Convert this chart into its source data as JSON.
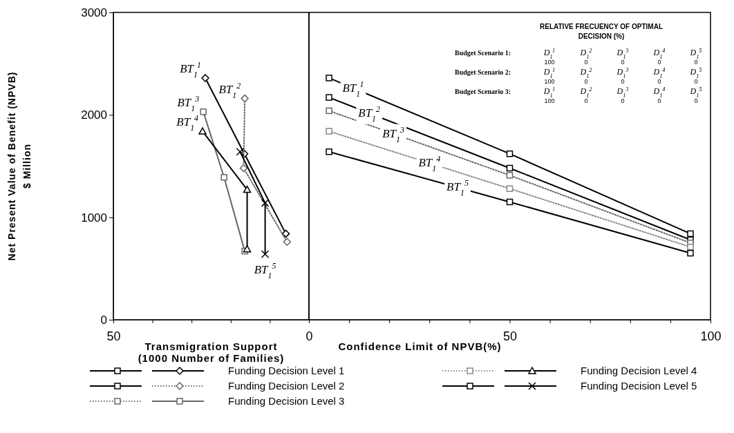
{
  "chart_data": [
    {
      "type": "line",
      "xlabel": "Transmigration Support\n(1000 Number of Families)",
      "ylabel": "Net Present Value of Benefit (NPVB)\n$ Million",
      "xlim": [
        50,
        0
      ],
      "xticks": [
        50,
        {
          "value": 40,
          "label": null
        },
        {
          "value": 30,
          "label": null
        },
        {
          "value": 20,
          "label": null
        },
        {
          "value": 10,
          "label": null
        },
        0
      ],
      "ylim": [
        0,
        3000
      ],
      "yticks": [
        0,
        1000,
        2000,
        3000
      ],
      "legend": "bottom",
      "series": [
        {
          "name": "Funding Decision Level 1",
          "color": "#000000",
          "marker": "diamond",
          "line_style": "solid",
          "x": [
            26.5,
            16.5,
            5.9
          ],
          "values": [
            2360,
            1620,
            840
          ]
        },
        {
          "name": "Funding Decision Level 2",
          "color": "#666666",
          "marker": "diamond",
          "line_style": "dotted",
          "x": [
            16.4,
            16.7,
            5.6
          ],
          "values": [
            2160,
            1480,
            760
          ]
        },
        {
          "name": "Funding Decision Level 3",
          "color": "#666666",
          "marker": "square",
          "line_style": "solid",
          "x": [
            27.0,
            21.7,
            16.4
          ],
          "values": [
            2030,
            1390,
            670
          ]
        },
        {
          "name": "Funding Decision Level 4",
          "color": "#000000",
          "marker": "triangle",
          "line_style": "solid",
          "x": [
            27.2,
            15.8,
            15.8
          ],
          "values": [
            1840,
            1270,
            690
          ]
        },
        {
          "name": "Funding Decision Level 5",
          "color": "#000000",
          "marker": "cross",
          "line_style": "solid",
          "x": [
            17.6,
            11.2,
            11.2
          ],
          "values": [
            1640,
            1140,
            640
          ]
        }
      ],
      "annotations": [
        {
          "text": "BT$_{1}$$^{1}$",
          "x": 26.5,
          "y": 2360
        },
        {
          "text": "BT$_{1}$$^{2}$",
          "x": 16.4,
          "y": 2160
        },
        {
          "text": "BT$_{1}$$^{3}$",
          "x": 27.0,
          "y": 2030
        },
        {
          "text": "BT$_{1}$$^{4}$",
          "x": 27.2,
          "y": 1840
        },
        {
          "text": "BT$_{1}$$^{5}$",
          "x": 11.2,
          "y": 640
        }
      ]
    },
    {
      "type": "line",
      "xlabel": "Confidence Limit of NPVB(%)",
      "xlim": [
        0,
        100
      ],
      "xticks": [
        {
          "value": 0,
          "label": null
        },
        {
          "value": 10,
          "label": null
        },
        {
          "value": 20,
          "label": null
        },
        {
          "value": 30,
          "label": null
        },
        {
          "value": 40,
          "label": null
        },
        50,
        {
          "value": 60,
          "label": null
        },
        {
          "value": 70,
          "label": null
        },
        {
          "value": 80,
          "label": null
        },
        {
          "value": 90,
          "label": null
        },
        100
      ],
      "ylim": [
        0,
        3000
      ],
      "tick_labels": "x",
      "x": [
        5,
        50,
        95
      ],
      "series": [
        {
          "color": "#000000",
          "marker": "square",
          "line_style": "solid",
          "values": [
            2360,
            1620,
            840
          ]
        },
        {
          "color": "#000000",
          "marker": "square",
          "line_style": "solid",
          "values": [
            2170,
            1480,
            780
          ]
        },
        {
          "color": "#666666",
          "marker": "square",
          "line_style": "dotted",
          "values": [
            2040,
            1410,
            750
          ]
        },
        {
          "color": "#888888",
          "marker": "square",
          "line_style": "dotted",
          "values": [
            1840,
            1280,
            710
          ]
        },
        {
          "color": "#000000",
          "marker": "square",
          "line_style": "solid",
          "values": [
            1640,
            1150,
            650
          ]
        }
      ],
      "annotations": [
        {
          "text": "BT$_{1}$$^{1}$",
          "x": 11,
          "y": 2261
        },
        {
          "text": "BT$_{1}$$^{2}$",
          "x": 15,
          "y": 2017
        },
        {
          "text": "BT$_{1}$$^{3}$",
          "x": 21,
          "y": 1816
        },
        {
          "text": "BT$_{1}$$^{4}$",
          "x": 30,
          "y": 1529
        },
        {
          "text": "BT$_{1}$$^{5}$",
          "x": 37,
          "y": 1292
        },
        "RELATIVE FRECUENCY OF OPTIMAL DECISION (%)",
        "Budget Scenario 1:",
        "D$_{1}$$^{1}$",
        "D$_{1}$$^{2}$",
        "D$_{1}$$^{3}$",
        "D$_{1}$$^{4}$",
        "D$_{1}$$^{5}$",
        "100",
        "0",
        "0",
        "0",
        "0",
        "Budget Scenario 2:",
        "D$_{1}$$^{1}$",
        "D$_{1}$$^{2}$",
        "D$_{1}$$^{3}$",
        "D$_{1}$$^{4}$",
        "D$_{1}$$^{5}$",
        "100",
        "0",
        "0",
        "0",
        "0",
        "Budget Scenario 3:",
        "D$_{1}$$^{1}$",
        "D$_{1}$$^{2}$",
        "D$_{1}$$^{3}$",
        "D$_{1}$$^{4}$",
        "D$_{1}$$^{5}$",
        "100",
        "0",
        "0",
        "0",
        "0"
      ]
    }
  ]
}
